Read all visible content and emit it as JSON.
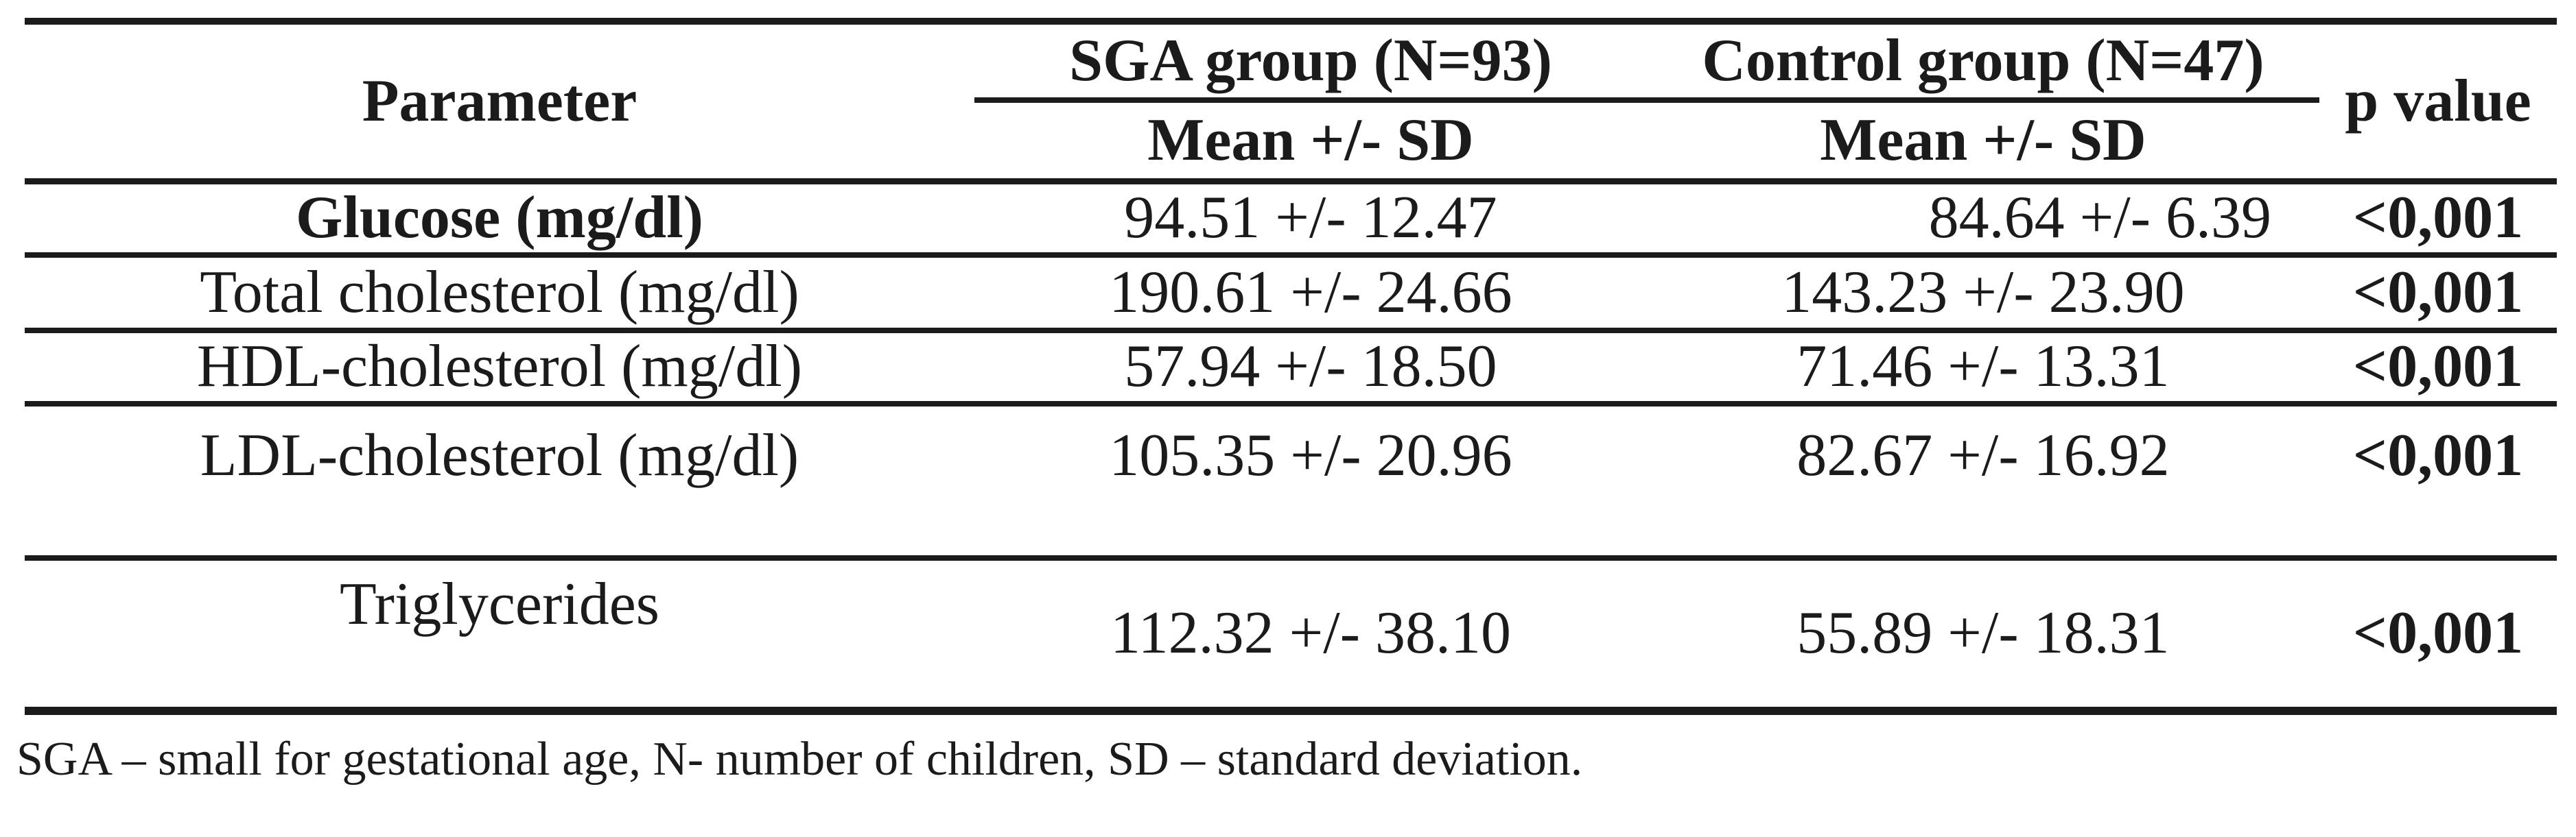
{
  "table": {
    "header": {
      "parameter": "Parameter",
      "sga_group": "SGA group (N=93)",
      "control_group": "Control group (N=47)",
      "p_value": "p value",
      "sga_subheader": "Mean +/- SD",
      "control_subheader": "Mean +/- SD"
    },
    "rows": [
      {
        "parameter": "Glucose (mg/dl)",
        "sga": "94.51 +/- 12.47",
        "control": "84.64 +/- 6.39",
        "p": "<0,001"
      },
      {
        "parameter": "Total cholesterol (mg/dl)",
        "sga": "190.61 +/- 24.66",
        "control": "143.23 +/- 23.90",
        "p": "<0,001"
      },
      {
        "parameter": "HDL-cholesterol (mg/dl)",
        "sga": "57.94 +/- 18.50",
        "control": "71.46 +/- 13.31",
        "p": "<0,001"
      },
      {
        "parameter": "LDL-cholesterol (mg/dl)",
        "sga": "105.35 +/- 20.96",
        "control": "82.67 +/- 16.92",
        "p": "<0,001"
      },
      {
        "parameter": "Triglycerides",
        "sga": "112.32 +/- 38.10",
        "control": "55.89 +/- 18.31",
        "p": "<0,001"
      }
    ],
    "footnote": "SGA – small for gestational age, N- number of children, SD – standard deviation."
  }
}
